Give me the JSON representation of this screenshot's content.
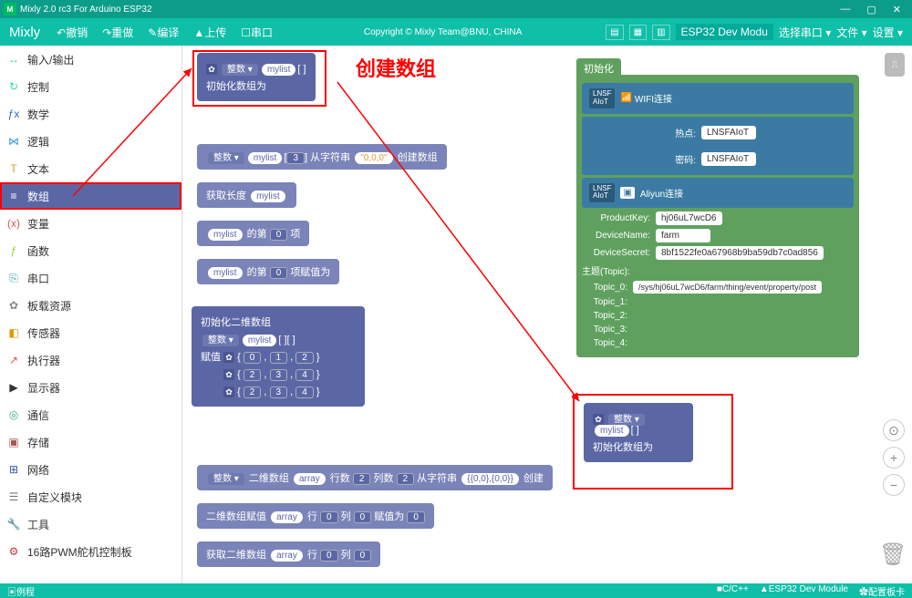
{
  "window": {
    "title": "Mixly 2.0 rc3 For Arduino ESP32"
  },
  "toolbar": {
    "brand": "Mixly",
    "items": [
      "↶撤销",
      "↷重做",
      "✎编译",
      "▲上传",
      "☐串口"
    ],
    "copyright": "Copyright © Mixly Team@BNU, CHINA",
    "board": "ESP32 Dev Modu",
    "port": "选择串口 ▾",
    "file": "文件 ▾",
    "settings": "设置 ▾"
  },
  "sidebar": {
    "items": [
      {
        "icon": "↔",
        "label": "输入/输出",
        "color": "#3d9"
      },
      {
        "icon": "↻",
        "label": "控制",
        "color": "#3d9"
      },
      {
        "icon": "ƒx",
        "label": "数学",
        "color": "#36c"
      },
      {
        "icon": "⋈",
        "label": "逻辑",
        "color": "#39d"
      },
      {
        "icon": "T",
        "label": "文本",
        "color": "#d93"
      },
      {
        "icon": "≡",
        "label": "数组",
        "color": "#fff",
        "active": true,
        "boxed": true
      },
      {
        "icon": "(x)",
        "label": "变量",
        "color": "#d55"
      },
      {
        "icon": "ƒ",
        "label": "函数",
        "color": "#9c3"
      },
      {
        "icon": "⎘",
        "label": "串口",
        "color": "#3ab"
      },
      {
        "icon": "✿",
        "label": "板载资源",
        "color": "#888"
      },
      {
        "icon": "◧",
        "label": "传感器",
        "color": "#d90"
      },
      {
        "icon": "↗",
        "label": "执行器",
        "color": "#d55"
      },
      {
        "icon": "▶",
        "label": "显示器",
        "color": "#333"
      },
      {
        "icon": "◎",
        "label": "通信",
        "color": "#3a8"
      },
      {
        "icon": "▣",
        "label": "存储",
        "color": "#a55"
      },
      {
        "icon": "⊞",
        "label": "网络",
        "color": "#35a"
      },
      {
        "icon": "☰",
        "label": "自定义模块",
        "color": "#777"
      },
      {
        "icon": "🔧",
        "label": "工具",
        "color": "#a55"
      },
      {
        "icon": "⚙",
        "label": "16路PWM舵机控制板",
        "color": "#c33"
      }
    ]
  },
  "annot": {
    "create": "创建数组"
  },
  "blocks": {
    "b1": {
      "type": "整数 ▾",
      "name": "mylist",
      "brackets": "[ ]",
      "label": "初始化数组为"
    },
    "b2": {
      "type": "整数 ▾",
      "name": "mylist",
      "idx": "3",
      "mid": "从字符串",
      "val": "\"0,0,0\"",
      "tail": "创建数组"
    },
    "b3": {
      "lead": "获取长度",
      "name": "mylist"
    },
    "b4": {
      "name": "mylist",
      "mid": "的第",
      "idx": "0",
      "tail": "项"
    },
    "b5": {
      "name": "mylist",
      "mid": "的第",
      "idx": "0",
      "tail": "项赋值为"
    },
    "b6": {
      "title": "初始化二维数组",
      "type": "整数 ▾",
      "name": "mylist",
      "brackets": "[ ][ ]",
      "rows": [
        [
          "0",
          "1",
          "2"
        ],
        [
          "2",
          "3",
          "4"
        ],
        [
          "2",
          "3",
          "4"
        ]
      ],
      "rowlabel": "赋值"
    },
    "b7": {
      "type": "整数 ▾",
      "lbl2d": "二维数组",
      "arr": "array",
      "rows": "行数",
      "rn": "2",
      "cols": "列数",
      "cn": "2",
      "from": "从字符串",
      "val": "{{0,0},{0,0}}",
      "tail": "创建"
    },
    "b8": {
      "lead": "二维数组赋值",
      "arr": "array",
      "row": "行",
      "ri": "0",
      "col": "列",
      "ci": "0",
      "set": "赋值为",
      "v": "0"
    },
    "b9": {
      "lead": "获取二维数组",
      "arr": "array",
      "row": "行",
      "ri": "0",
      "col": "列",
      "ci": "0"
    },
    "bc": {
      "type": "整数 ▾",
      "name": "mylist",
      "brackets": "[ ]",
      "label": "初始化数组为"
    }
  },
  "setup": {
    "header": "初始化",
    "wifi": {
      "tag": "LNSF\nAIoT",
      "title": "WIFI连接",
      "ssid_k": "热点:",
      "ssid_v": "LNSFAIoT",
      "pwd_k": "密码:",
      "pwd_v": "LNSFAIoT"
    },
    "ali": {
      "tag": "LNSF\nAIoT",
      "title": "Aliyun连接",
      "pk_k": "ProductKey:",
      "pk_v": "hj06uL7wcD6",
      "dn_k": "DeviceName:",
      "dn_v": "farm",
      "ds_k": "DeviceSecret:",
      "ds_v": "8bf1522fe0a67968b9ba59db7c0ad856",
      "topic": "主题(Topic):",
      "t0_k": "Topic_0:",
      "t0_v": "/sys/hj06uL7wcD6/farm/thing/event/property/post",
      "t1": "Topic_1:",
      "t2": "Topic_2:",
      "t3": "Topic_3:",
      "t4": "Topic_4:"
    }
  },
  "status": {
    "left": "▣例程",
    "r1": "■C/C++",
    "r2": "▲ESP32 Dev Module",
    "r3": "✿配置板卡"
  }
}
